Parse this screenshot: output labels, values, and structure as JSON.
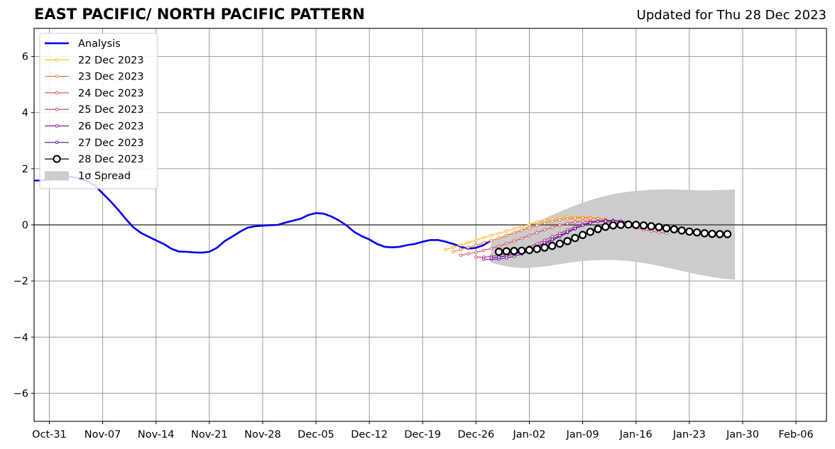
{
  "chart_data": {
    "type": "line",
    "title": "EAST PACIFIC/ NORTH PACIFIC PATTERN",
    "subtitle": "Updated for Thu 28 Dec 2023",
    "ylim": [
      -7,
      7
    ],
    "yticks": [
      -6,
      -4,
      -2,
      0,
      2,
      4,
      6
    ],
    "ytick_labels": [
      "−6",
      "−4",
      "−2",
      "0",
      "2",
      "4",
      "6"
    ],
    "xlim": [
      "2023-10-29",
      "2024-02-10"
    ],
    "xticks": [
      "2023-10-31",
      "2023-11-07",
      "2023-11-14",
      "2023-11-21",
      "2023-11-28",
      "2023-12-05",
      "2023-12-12",
      "2023-12-19",
      "2023-12-26",
      "2024-01-02",
      "2024-01-09",
      "2024-01-16",
      "2024-01-23",
      "2024-01-30",
      "2024-02-06"
    ],
    "xtick_labels": [
      "Oct-31",
      "Nov-07",
      "Nov-14",
      "Nov-21",
      "Nov-28",
      "Dec-05",
      "Dec-12",
      "Dec-19",
      "Dec-26",
      "Jan-02",
      "Jan-09",
      "Jan-16",
      "Jan-23",
      "Jan-30",
      "Feb-06"
    ],
    "grid": true,
    "legend_position": "top-left",
    "analysis": {
      "name": "Analysis",
      "color": "#0000ee",
      "x": [
        "2023-10-29",
        "2023-10-30",
        "2023-10-31",
        "2023-11-01",
        "2023-11-02",
        "2023-11-03",
        "2023-11-04",
        "2023-11-05",
        "2023-11-06",
        "2023-11-07",
        "2023-11-08",
        "2023-11-09",
        "2023-11-10",
        "2023-11-11",
        "2023-11-12",
        "2023-11-13",
        "2023-11-14",
        "2023-11-15",
        "2023-11-16",
        "2023-11-17",
        "2023-11-18",
        "2023-11-19",
        "2023-11-20",
        "2023-11-21",
        "2023-11-22",
        "2023-11-23",
        "2023-11-24",
        "2023-11-25",
        "2023-11-26",
        "2023-11-27",
        "2023-11-28",
        "2023-11-29",
        "2023-11-30",
        "2023-12-01",
        "2023-12-02",
        "2023-12-03",
        "2023-12-04",
        "2023-12-05",
        "2023-12-06",
        "2023-12-07",
        "2023-12-08",
        "2023-12-09",
        "2023-12-10",
        "2023-12-11",
        "2023-12-12",
        "2023-12-13",
        "2023-12-14",
        "2023-12-15",
        "2023-12-16",
        "2023-12-17",
        "2023-12-18",
        "2023-12-19",
        "2023-12-20",
        "2023-12-21",
        "2023-12-22",
        "2023-12-23",
        "2023-12-24",
        "2023-12-25",
        "2023-12-26",
        "2023-12-27",
        "2023-12-28"
      ],
      "y": [
        1.58,
        1.58,
        1.62,
        1.7,
        1.72,
        1.7,
        1.65,
        1.55,
        1.4,
        1.12,
        0.85,
        0.55,
        0.22,
        -0.08,
        -0.28,
        -0.42,
        -0.55,
        -0.68,
        -0.85,
        -0.95,
        -0.96,
        -0.98,
        -0.99,
        -0.96,
        -0.82,
        -0.58,
        -0.42,
        -0.25,
        -0.1,
        -0.05,
        -0.03,
        -0.01,
        0.0,
        0.08,
        0.15,
        0.22,
        0.35,
        0.42,
        0.4,
        0.3,
        0.16,
        -0.02,
        -0.25,
        -0.4,
        -0.52,
        -0.68,
        -0.78,
        -0.8,
        -0.78,
        -0.72,
        -0.68,
        -0.6,
        -0.54,
        -0.54,
        -0.6,
        -0.68,
        -0.78,
        -0.85,
        -0.82,
        -0.72,
        -0.55
      ]
    },
    "forecasts": [
      {
        "name": "22 Dec 2023",
        "color": "#ffb31a",
        "marker": "small-dot",
        "start": "2023-12-22",
        "y": [
          -0.88,
          -0.8,
          -0.72,
          -0.63,
          -0.54,
          -0.46,
          -0.38,
          -0.3,
          -0.22,
          -0.14,
          -0.06,
          0.02,
          0.1,
          0.16,
          0.21,
          0.25,
          0.28,
          0.29,
          0.29,
          0.27,
          0.24,
          0.2
        ]
      },
      {
        "name": "23 Dec 2023",
        "color": "#f57d3d",
        "marker": "small-dot",
        "start": "2023-12-23",
        "y": [
          -0.95,
          -0.88,
          -0.8,
          -0.72,
          -0.64,
          -0.56,
          -0.47,
          -0.38,
          -0.29,
          -0.2,
          -0.11,
          -0.02,
          0.06,
          0.13,
          0.18,
          0.22,
          0.24,
          0.25,
          0.24,
          0.22,
          0.19
        ]
      },
      {
        "name": "24 Dec 2023",
        "color": "#e0565f",
        "marker": "small-dot",
        "start": "2023-12-24",
        "y": [
          -1.08,
          -1.03,
          -0.98,
          -0.91,
          -0.84,
          -0.76,
          -0.67,
          -0.58,
          -0.48,
          -0.38,
          -0.28,
          -0.18,
          -0.09,
          -0.01,
          0.05,
          0.1,
          0.13,
          0.14,
          0.13,
          0.1,
          0.06,
          0.01,
          -0.05,
          -0.11,
          -0.17,
          -0.22,
          -0.27,
          -0.3
        ]
      },
      {
        "name": "25 Dec 2023",
        "color": "#c23a86",
        "marker": "small-dot",
        "start": "2023-12-26",
        "y": [
          -1.15,
          -1.15,
          -1.12,
          -1.08,
          -1.03,
          -0.96,
          -0.88,
          -0.78,
          -0.67,
          -0.55,
          -0.42,
          -0.3,
          -0.18,
          -0.07,
          0.02,
          0.09,
          0.13,
          0.15,
          0.14,
          0.11,
          0.07,
          0.02
        ]
      },
      {
        "name": "26 Dec 2023",
        "color": "#9013a8",
        "marker": "small-dot",
        "start": "2023-12-27",
        "y": [
          -1.22,
          -1.23,
          -1.22,
          -1.18,
          -1.12,
          -1.04,
          -0.94,
          -0.83,
          -0.7,
          -0.56,
          -0.42,
          -0.28,
          -0.14,
          -0.02,
          0.07,
          0.13,
          0.16,
          0.16,
          0.14,
          0.1,
          0.05
        ]
      },
      {
        "name": "27 Dec 2023",
        "color": "#55109a",
        "marker": "small-dot",
        "start": "2023-12-28",
        "y": [
          -1.18,
          -1.15,
          -1.1,
          -1.04,
          -0.96,
          -0.87,
          -0.76,
          -0.64,
          -0.51,
          -0.38,
          -0.25,
          -0.13,
          -0.02,
          0.07,
          0.12,
          0.14,
          0.13
        ]
      },
      {
        "name": "28 Dec 2023",
        "color": "#000000",
        "marker": "open-circle",
        "start": "2023-12-29",
        "y": [
          -0.96,
          -0.94,
          -0.93,
          -0.92,
          -0.9,
          -0.86,
          -0.81,
          -0.75,
          -0.67,
          -0.58,
          -0.47,
          -0.36,
          -0.25,
          -0.15,
          -0.07,
          -0.02,
          0.0,
          0.01,
          0.0,
          -0.02,
          -0.05,
          -0.08,
          -0.12,
          -0.16,
          -0.2,
          -0.24,
          -0.27,
          -0.3,
          -0.32,
          -0.33,
          -0.33
        ]
      }
    ],
    "spread": {
      "name": "1σ Spread",
      "color": "#cccccc",
      "start": "2023-12-28",
      "upper": [
        -0.55,
        -0.45,
        -0.35,
        -0.24,
        -0.13,
        -0.01,
        0.11,
        0.23,
        0.35,
        0.47,
        0.58,
        0.69,
        0.79,
        0.88,
        0.96,
        1.03,
        1.09,
        1.14,
        1.18,
        1.21,
        1.23,
        1.25,
        1.26,
        1.26,
        1.26,
        1.25,
        1.24,
        1.23,
        1.23,
        1.23,
        1.24,
        1.25,
        1.26
      ],
      "lower": [
        -1.35,
        -1.42,
        -1.48,
        -1.52,
        -1.54,
        -1.53,
        -1.51,
        -1.48,
        -1.44,
        -1.4,
        -1.36,
        -1.32,
        -1.29,
        -1.27,
        -1.26,
        -1.25,
        -1.25,
        -1.27,
        -1.29,
        -1.32,
        -1.36,
        -1.41,
        -1.46,
        -1.52,
        -1.58,
        -1.64,
        -1.7,
        -1.76,
        -1.81,
        -1.86,
        -1.9,
        -1.93,
        -1.95
      ]
    }
  }
}
